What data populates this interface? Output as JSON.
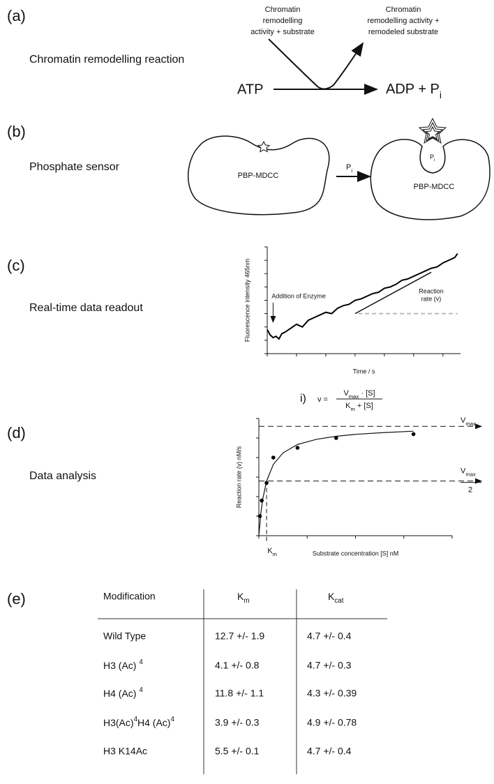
{
  "panels": [
    {
      "label": "(a)",
      "caption": "Chromatin remodelling reaction",
      "reactant_top": [
        "Chromatin",
        "remodelling",
        "activity + substrate"
      ],
      "product_top": [
        "Chromatin",
        "remodelling activity +",
        "remodeled substrate"
      ],
      "reactant": "ATP",
      "product": {
        "text": "ADP + P",
        "sub": "i"
      }
    },
    {
      "label": "(b)",
      "caption": "Phosphate sensor",
      "sensor_left": "PBP-MDCC",
      "arrow": {
        "text": "P",
        "sub": "i"
      },
      "pocket": {
        "text": "P",
        "sub": "i"
      },
      "sensor_right": "PBP-MDCC"
    },
    {
      "label": "(c)",
      "caption": "Real-time data readout"
    },
    {
      "label": "(d)",
      "caption": "Data analysis"
    },
    {
      "label": "(e)"
    }
  ],
  "chart_data": [
    {
      "type": "line",
      "y_label": "Fluorescence intensity 465nm",
      "x_label": "Time / s",
      "color": "#000000",
      "x": [
        40,
        50,
        60,
        70,
        80,
        90,
        100,
        120,
        140,
        160,
        180,
        200,
        220,
        240,
        260,
        280,
        300,
        320,
        340,
        360,
        380,
        400,
        420,
        440,
        460,
        480,
        500,
        520,
        540,
        560,
        580,
        600,
        620,
        640,
        660,
        680,
        690
      ],
      "values": [
        578,
        574,
        572,
        573,
        571,
        575,
        576,
        579,
        582,
        580,
        585,
        587,
        589,
        591,
        590,
        594,
        596,
        597,
        600,
        601,
        603,
        605,
        606,
        609,
        610,
        612,
        615,
        616,
        618,
        620,
        622,
        624,
        625,
        628,
        630,
        632,
        635
      ],
      "xlim": [
        40,
        700
      ],
      "xticks": [
        40,
        140,
        240,
        340,
        440,
        540,
        640
      ],
      "ylim": [
        560,
        640
      ],
      "yticks": [
        560,
        570,
        580,
        590,
        600,
        610,
        620,
        630,
        640
      ],
      "enzyme_note": "Addition of Enzyme",
      "enzyme_x": 60,
      "rate_note": [
        "Reaction",
        "rate (v)"
      ],
      "rate_line": {
        "x": [
          340,
          600
        ],
        "values": [
          590,
          621
        ]
      },
      "baseline": {
        "x": [
          350,
          690
        ],
        "values": [
          590,
          590
        ],
        "color": "#bbbbbb"
      }
    },
    {
      "type": "scatter",
      "y_label": "Reaction rate (v) nM/s",
      "x_label": "Substrate concentration [S] nM",
      "color": "#000000",
      "x": [
        1,
        3,
        8,
        15,
        40,
        80,
        160
      ],
      "values": [
        1,
        1.8,
        2.7,
        4.0,
        4.5,
        5.0,
        5.2
      ],
      "fit": {
        "x": [
          0,
          2,
          4,
          8,
          15,
          25,
          40,
          60,
          80,
          100,
          130,
          160
        ],
        "values": [
          0,
          1.12,
          1.87,
          2.8,
          3.65,
          4.24,
          4.67,
          4.94,
          5.09,
          5.19,
          5.28,
          5.35
        ]
      },
      "xlim": [
        0,
        200
      ],
      "xticks": [
        0,
        50,
        100,
        150,
        200
      ],
      "ylim": [
        0,
        6
      ],
      "yticks": [
        0,
        1,
        2,
        3,
        4,
        5,
        6
      ],
      "vmax": 5.6,
      "vmax_half": 2.8,
      "km": 8,
      "vmax_label": {
        "text": "V",
        "sub": "max"
      },
      "vmax_half_label": {
        "text": "V",
        "sub": "max"
      },
      "vmax_half_den": "2",
      "km_label": {
        "text": "K",
        "sub": "m"
      },
      "eq_index": "i)",
      "eq_lhs": "v =",
      "eq_num": {
        "text": "V",
        "sub": "max",
        "text2": " · [S]"
      },
      "eq_den": {
        "text": "K",
        "sub": "m",
        "text2": " + [S]"
      }
    }
  ],
  "table": {
    "header": [
      "Modification",
      {
        "text": "K",
        "sub": "m"
      },
      {
        "text": "K",
        "sub": "cat"
      }
    ],
    "rows": [
      [
        "Wild Type",
        "12.7 +/- 1.9",
        "4.7 +/- 0.4"
      ],
      [
        {
          "text": "H3 (Ac) ",
          "sup": "4"
        },
        "4.1 +/- 0.8",
        "4.7 +/- 0.3"
      ],
      [
        {
          "text": "H4 (Ac) ",
          "sup": "4"
        },
        "11.8 +/- 1.1",
        "4.3 +/- 0.39"
      ],
      [
        {
          "text": "H3(Ac)",
          "sup": "4",
          "text2": "H4 (Ac)",
          "sup2": "4"
        },
        "3.9 +/- 0.3",
        "4.9 +/- 0.78"
      ],
      [
        "H3 K14Ac",
        "5.5 +/- 0.1",
        "4.7 +/- 0.4"
      ]
    ]
  }
}
